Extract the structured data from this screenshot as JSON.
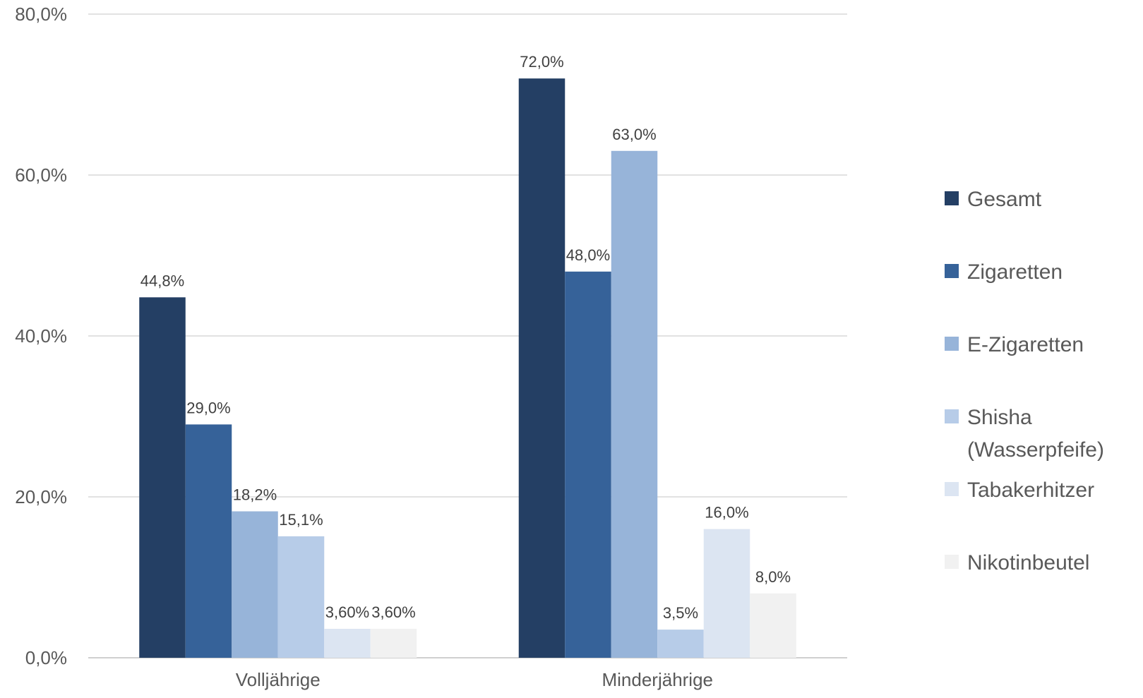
{
  "chart_data": {
    "type": "bar",
    "categories": [
      "Volljährige",
      "Minderjährige"
    ],
    "series": [
      {
        "name": "Gesamt",
        "color": "#243f64",
        "values": [
          44.8,
          72.0
        ],
        "labels": [
          "44,8%",
          "72,0%"
        ]
      },
      {
        "name": "Zigaretten",
        "color": "#366299",
        "values": [
          29.0,
          48.0
        ],
        "labels": [
          "29,0%",
          "48,0%"
        ]
      },
      {
        "name": "E-Zigaretten",
        "color": "#97b4d9",
        "values": [
          18.2,
          63.0
        ],
        "labels": [
          "18,2%",
          "63,0%"
        ]
      },
      {
        "name": "Shisha (Wasserpfeife)",
        "legend_lines": [
          "Shisha",
          "(Wasserpfeife)"
        ],
        "color": "#b7cce8",
        "values": [
          15.1,
          3.5
        ],
        "labels": [
          "15,1%",
          "3,5%"
        ]
      },
      {
        "name": "Tabakerhitzer",
        "color": "#dce5f2",
        "values": [
          3.6,
          16.0
        ],
        "labels": [
          "3,60%",
          "16,0%"
        ]
      },
      {
        "name": "Nikotinbeutel",
        "color": "#f1f1f1",
        "values": [
          3.6,
          8.0
        ],
        "labels": [
          "3,60%",
          "8,0%"
        ]
      }
    ],
    "y_ticks": [
      0,
      20,
      40,
      60,
      80
    ],
    "y_tick_labels": [
      "0,0%",
      "20,0%",
      "40,0%",
      "60,0%",
      "80,0%"
    ],
    "ylim": [
      0,
      80
    ],
    "title": "",
    "xlabel": "",
    "ylabel": "",
    "grid": true,
    "legend_position": "right"
  }
}
